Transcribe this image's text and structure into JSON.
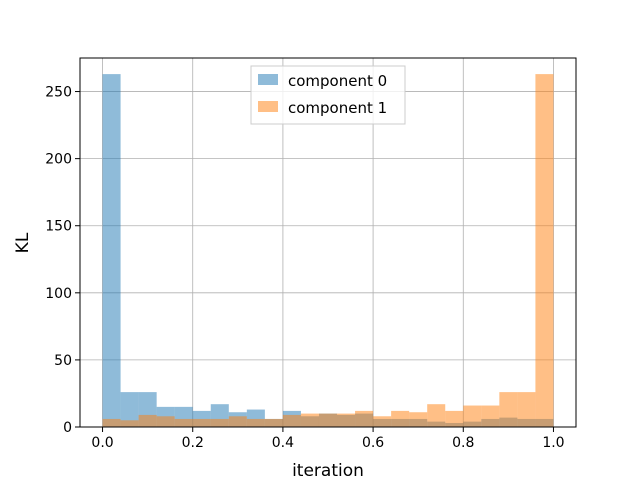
{
  "chart_data": {
    "type": "bar",
    "title": "",
    "xlabel": "iteration",
    "ylabel": "KL",
    "xlim": [
      -0.05,
      1.05
    ],
    "ylim": [
      0,
      275
    ],
    "xticks": [
      0.0,
      0.2,
      0.4,
      0.6,
      0.8,
      1.0
    ],
    "xtick_labels": [
      "0.0",
      "0.2",
      "0.4",
      "0.6",
      "0.8",
      "1.0"
    ],
    "yticks": [
      0,
      50,
      100,
      150,
      200,
      250
    ],
    "ytick_labels": [
      "0",
      "50",
      "100",
      "150",
      "200",
      "250"
    ],
    "grid": true,
    "legend_position": "top-center",
    "bin_edges": [
      0.0,
      0.04,
      0.08,
      0.12,
      0.16,
      0.2,
      0.24,
      0.28,
      0.32,
      0.36,
      0.4,
      0.44,
      0.48,
      0.52,
      0.56,
      0.6,
      0.64,
      0.68,
      0.72,
      0.76,
      0.8,
      0.84,
      0.88,
      0.92,
      0.96,
      1.0
    ],
    "series": [
      {
        "name": "component 0",
        "color": "#1f77b4",
        "opacity": 0.5,
        "values": [
          263,
          26,
          26,
          15,
          15,
          12,
          17,
          11,
          13,
          6,
          12,
          8,
          10,
          9,
          10,
          6,
          6,
          6,
          4,
          3,
          4,
          6,
          7,
          6,
          6
        ]
      },
      {
        "name": "component 1",
        "color": "#ff7f0e",
        "opacity": 0.5,
        "values": [
          6,
          5,
          9,
          8,
          6,
          6,
          6,
          8,
          6,
          6,
          9,
          10,
          10,
          10,
          12,
          8,
          12,
          11,
          17,
          12,
          16,
          16,
          26,
          26,
          263
        ]
      }
    ]
  }
}
